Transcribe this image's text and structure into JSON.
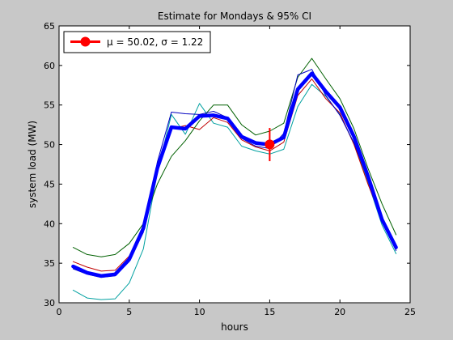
{
  "chart_data": {
    "type": "line",
    "title": "Estimate for Mondays & 95% CI",
    "xlabel": "hours",
    "ylabel": "system load (MW)",
    "xlim": [
      0,
      25
    ],
    "ylim": [
      30,
      65
    ],
    "xticks": [
      0,
      5,
      10,
      15,
      20,
      25
    ],
    "yticks": [
      30,
      35,
      40,
      45,
      50,
      55,
      60,
      65
    ],
    "grid": false,
    "legend_position": "top-left",
    "x": [
      1,
      2,
      3,
      4,
      5,
      6,
      7,
      8,
      9,
      10,
      11,
      12,
      13,
      14,
      15,
      16,
      17,
      18,
      19,
      20,
      21,
      22,
      23,
      24
    ],
    "series": [
      {
        "color": "#00a0a0",
        "width": 1,
        "values": [
          31.6,
          30.6,
          30.4,
          30.5,
          32.5,
          36.8,
          46.5,
          53.8,
          51.3,
          55.2,
          52.7,
          52.2,
          49.8,
          49.2,
          48.8,
          49.4,
          54.8,
          57.6,
          56.1,
          53.8,
          50.2,
          45.2,
          39.8,
          36.2
        ]
      },
      {
        "color": "#c00000",
        "width": 1,
        "values": [
          35.2,
          34.5,
          34.0,
          34.1,
          35.9,
          39.6,
          47.5,
          52.0,
          52.4,
          51.9,
          53.4,
          52.8,
          50.6,
          49.7,
          49.2,
          50.3,
          56.2,
          58.3,
          55.8,
          54.0,
          50.0,
          45.0,
          40.5,
          36.8
        ]
      },
      {
        "color": "#006000",
        "width": 1,
        "values": [
          37.0,
          36.1,
          35.8,
          36.1,
          37.5,
          40.0,
          45.0,
          48.5,
          50.5,
          53.0,
          55.0,
          55.0,
          52.5,
          51.2,
          51.7,
          52.7,
          58.5,
          60.9,
          58.3,
          55.8,
          52.0,
          47.0,
          42.5,
          38.6
        ]
      },
      {
        "color": "#0000c0",
        "width": 1,
        "values": [
          34.3,
          33.6,
          33.2,
          33.4,
          35.2,
          38.9,
          47.8,
          54.1,
          53.9,
          53.8,
          54.2,
          53.4,
          50.8,
          49.8,
          49.5,
          51.4,
          58.8,
          59.5,
          56.2,
          53.7,
          50.2,
          45.6,
          40.2,
          36.6
        ]
      },
      {
        "name": "μ = 50.02, σ =  1.22",
        "color": "#0000ff",
        "width": 4.5,
        "values": [
          34.6,
          33.8,
          33.4,
          33.6,
          35.5,
          39.4,
          47.0,
          52.2,
          52.0,
          53.6,
          53.7,
          53.3,
          51.0,
          50.2,
          50.0,
          50.9,
          57.0,
          59.0,
          56.7,
          54.7,
          51.0,
          46.0,
          40.5,
          37.0
        ]
      }
    ],
    "estimate": {
      "x": 15,
      "y": 50.02,
      "ci_low": 47.9,
      "ci_high": 52.1,
      "color": "#ff0000"
    },
    "legend": [
      {
        "label": "μ = 50.02, σ =  1.22",
        "color": "#ff0000"
      }
    ]
  }
}
